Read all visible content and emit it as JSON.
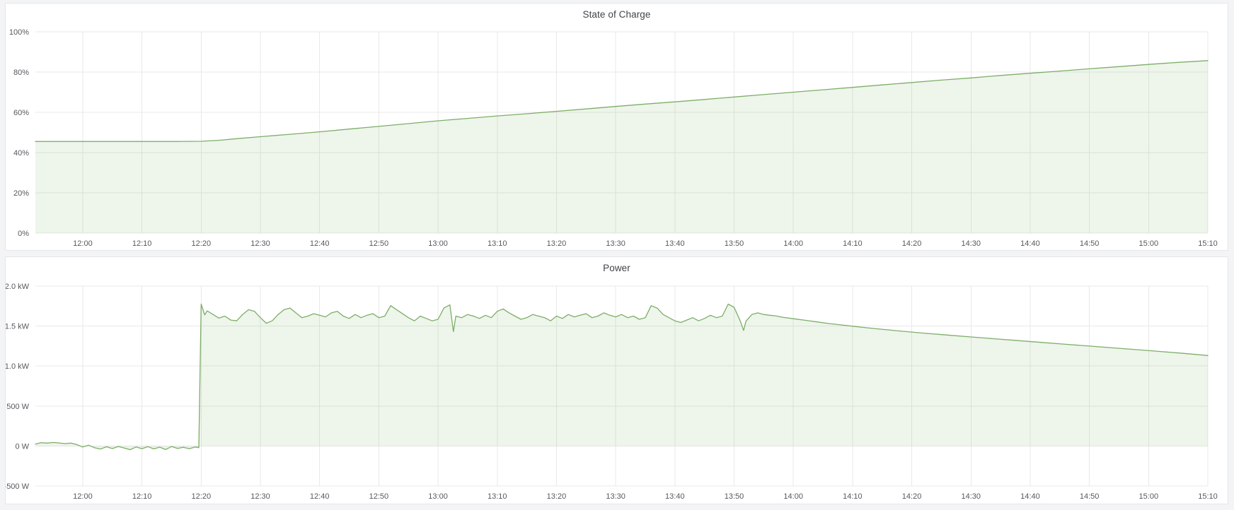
{
  "page": {
    "background_color": "#f3f4f5",
    "panel_background": "#ffffff",
    "panel_border_color": "#e3e6ea",
    "accent_green": "#7dae68",
    "gridline_color": "#e9e9e9"
  },
  "chart_data": [
    {
      "type": "area",
      "title": "State of Charge",
      "xlabel": "",
      "ylabel": "",
      "unit": "%",
      "grid": true,
      "legend": "none",
      "line_color": "#7dae68",
      "fill_opacity": 0.13,
      "fill_baseline": 0,
      "ylim": [
        0,
        100
      ],
      "xlim": [
        0,
        198
      ],
      "x_window": {
        "start": "11:52",
        "end": "15:10"
      },
      "y_ticks": [
        {
          "v": 0,
          "label": "0%"
        },
        {
          "v": 20,
          "label": "20%"
        },
        {
          "v": 40,
          "label": "40%"
        },
        {
          "v": 60,
          "label": "60%"
        },
        {
          "v": 80,
          "label": "80%"
        },
        {
          "v": 100,
          "label": "100%"
        }
      ],
      "x_ticks": [
        {
          "t": 8,
          "label": "12:00"
        },
        {
          "t": 18,
          "label": "12:10"
        },
        {
          "t": 28,
          "label": "12:20"
        },
        {
          "t": 38,
          "label": "12:30"
        },
        {
          "t": 48,
          "label": "12:40"
        },
        {
          "t": 58,
          "label": "12:50"
        },
        {
          "t": 68,
          "label": "13:00"
        },
        {
          "t": 78,
          "label": "13:10"
        },
        {
          "t": 88,
          "label": "13:20"
        },
        {
          "t": 98,
          "label": "13:30"
        },
        {
          "t": 108,
          "label": "13:40"
        },
        {
          "t": 118,
          "label": "13:50"
        },
        {
          "t": 128,
          "label": "14:00"
        },
        {
          "t": 138,
          "label": "14:10"
        },
        {
          "t": 148,
          "label": "14:20"
        },
        {
          "t": 158,
          "label": "14:30"
        },
        {
          "t": 168,
          "label": "14:40"
        },
        {
          "t": 178,
          "label": "14:50"
        },
        {
          "t": 188,
          "label": "15:00"
        },
        {
          "t": 198,
          "label": "15:10"
        }
      ],
      "series": [
        {
          "name": "State of Charge",
          "points": [
            [
              0,
              45.5
            ],
            [
              6,
              45.5
            ],
            [
              12,
              45.5
            ],
            [
              18,
              45.5
            ],
            [
              24,
              45.5
            ],
            [
              28,
              45.6
            ],
            [
              31,
              46.1
            ],
            [
              34,
              46.9
            ],
            [
              38,
              47.9
            ],
            [
              43,
              49.1
            ],
            [
              48,
              50.3
            ],
            [
              53,
              51.7
            ],
            [
              58,
              53.0
            ],
            [
              63,
              54.4
            ],
            [
              68,
              55.8
            ],
            [
              73,
              57.0
            ],
            [
              78,
              58.2
            ],
            [
              83,
              59.3
            ],
            [
              88,
              60.5
            ],
            [
              93,
              61.7
            ],
            [
              98,
              62.9
            ],
            [
              103,
              64.1
            ],
            [
              108,
              65.2
            ],
            [
              113,
              66.4
            ],
            [
              118,
              67.6
            ],
            [
              123,
              68.8
            ],
            [
              128,
              70.0
            ],
            [
              133,
              71.2
            ],
            [
              138,
              72.4
            ],
            [
              143,
              73.6
            ],
            [
              148,
              74.8
            ],
            [
              153,
              76.0
            ],
            [
              158,
              77.1
            ],
            [
              163,
              78.3
            ],
            [
              168,
              79.4
            ],
            [
              173,
              80.5
            ],
            [
              178,
              81.6
            ],
            [
              183,
              82.7
            ],
            [
              188,
              83.8
            ],
            [
              193,
              84.8
            ],
            [
              198,
              85.7
            ]
          ]
        }
      ]
    },
    {
      "type": "area",
      "title": "Power",
      "xlabel": "",
      "ylabel": "",
      "unit": "W",
      "grid": true,
      "legend": "none",
      "line_color": "#7dae68",
      "fill_opacity": 0.13,
      "fill_baseline": 0,
      "ylim": [
        -500,
        2000
      ],
      "xlim": [
        0,
        198
      ],
      "x_window": {
        "start": "11:52",
        "end": "15:10"
      },
      "y_ticks": [
        {
          "v": -500,
          "label": "-500 W"
        },
        {
          "v": 0,
          "label": "0 W"
        },
        {
          "v": 500,
          "label": "500 W"
        },
        {
          "v": 1000,
          "label": "1.0 kW"
        },
        {
          "v": 1500,
          "label": "1.5 kW"
        },
        {
          "v": 2000,
          "label": "2.0 kW"
        }
      ],
      "x_ticks": [
        {
          "t": 8,
          "label": "12:00"
        },
        {
          "t": 18,
          "label": "12:10"
        },
        {
          "t": 28,
          "label": "12:20"
        },
        {
          "t": 38,
          "label": "12:30"
        },
        {
          "t": 48,
          "label": "12:40"
        },
        {
          "t": 58,
          "label": "12:50"
        },
        {
          "t": 68,
          "label": "13:00"
        },
        {
          "t": 78,
          "label": "13:10"
        },
        {
          "t": 88,
          "label": "13:20"
        },
        {
          "t": 98,
          "label": "13:30"
        },
        {
          "t": 108,
          "label": "13:40"
        },
        {
          "t": 118,
          "label": "13:50"
        },
        {
          "t": 128,
          "label": "14:00"
        },
        {
          "t": 138,
          "label": "14:10"
        },
        {
          "t": 148,
          "label": "14:20"
        },
        {
          "t": 158,
          "label": "14:30"
        },
        {
          "t": 168,
          "label": "14:40"
        },
        {
          "t": 178,
          "label": "14:50"
        },
        {
          "t": 188,
          "label": "15:00"
        },
        {
          "t": 198,
          "label": "15:10"
        }
      ],
      "series": [
        {
          "name": "Power",
          "points": [
            [
              0,
              25
            ],
            [
              1,
              42
            ],
            [
              2,
              36
            ],
            [
              3,
              44
            ],
            [
              4,
              38
            ],
            [
              5,
              30
            ],
            [
              6,
              36
            ],
            [
              7,
              18
            ],
            [
              8,
              -12
            ],
            [
              9,
              10
            ],
            [
              10,
              -22
            ],
            [
              11,
              -38
            ],
            [
              12,
              -10
            ],
            [
              13,
              -32
            ],
            [
              14,
              -6
            ],
            [
              15,
              -26
            ],
            [
              16,
              -46
            ],
            [
              17,
              -12
            ],
            [
              18,
              -34
            ],
            [
              19,
              -8
            ],
            [
              20,
              -36
            ],
            [
              21,
              -14
            ],
            [
              22,
              -44
            ],
            [
              23,
              -6
            ],
            [
              24,
              -30
            ],
            [
              25,
              -16
            ],
            [
              26,
              -34
            ],
            [
              27,
              -12
            ],
            [
              27.6,
              -20
            ],
            [
              28,
              1775
            ],
            [
              28.6,
              1640
            ],
            [
              29,
              1690
            ],
            [
              30,
              1645
            ],
            [
              31,
              1600
            ],
            [
              32,
              1625
            ],
            [
              33,
              1575
            ],
            [
              34,
              1565
            ],
            [
              35,
              1645
            ],
            [
              36,
              1705
            ],
            [
              37,
              1685
            ],
            [
              38,
              1605
            ],
            [
              39,
              1535
            ],
            [
              40,
              1565
            ],
            [
              41,
              1645
            ],
            [
              42,
              1705
            ],
            [
              43,
              1725
            ],
            [
              44,
              1665
            ],
            [
              45,
              1605
            ],
            [
              46,
              1625
            ],
            [
              47,
              1655
            ],
            [
              48,
              1635
            ],
            [
              49,
              1615
            ],
            [
              50,
              1665
            ],
            [
              51,
              1685
            ],
            [
              52,
              1625
            ],
            [
              53,
              1595
            ],
            [
              54,
              1645
            ],
            [
              55,
              1605
            ],
            [
              56,
              1635
            ],
            [
              57,
              1655
            ],
            [
              58,
              1605
            ],
            [
              59,
              1625
            ],
            [
              60,
              1755
            ],
            [
              61,
              1705
            ],
            [
              62,
              1655
            ],
            [
              63,
              1605
            ],
            [
              64,
              1565
            ],
            [
              65,
              1625
            ],
            [
              66,
              1595
            ],
            [
              67,
              1565
            ],
            [
              68,
              1585
            ],
            [
              69,
              1725
            ],
            [
              70,
              1765
            ],
            [
              70.6,
              1430
            ],
            [
              71,
              1625
            ],
            [
              72,
              1605
            ],
            [
              73,
              1645
            ],
            [
              74,
              1625
            ],
            [
              75,
              1595
            ],
            [
              76,
              1635
            ],
            [
              77,
              1605
            ],
            [
              78,
              1685
            ],
            [
              79,
              1715
            ],
            [
              80,
              1665
            ],
            [
              81,
              1625
            ],
            [
              82,
              1585
            ],
            [
              83,
              1605
            ],
            [
              84,
              1645
            ],
            [
              85,
              1625
            ],
            [
              86,
              1605
            ],
            [
              87,
              1565
            ],
            [
              88,
              1625
            ],
            [
              89,
              1595
            ],
            [
              90,
              1645
            ],
            [
              91,
              1615
            ],
            [
              92,
              1635
            ],
            [
              93,
              1655
            ],
            [
              94,
              1605
            ],
            [
              95,
              1625
            ],
            [
              96,
              1665
            ],
            [
              97,
              1635
            ],
            [
              98,
              1615
            ],
            [
              99,
              1645
            ],
            [
              100,
              1605
            ],
            [
              101,
              1625
            ],
            [
              102,
              1585
            ],
            [
              103,
              1605
            ],
            [
              104,
              1755
            ],
            [
              105,
              1725
            ],
            [
              106,
              1645
            ],
            [
              107,
              1605
            ],
            [
              108,
              1565
            ],
            [
              109,
              1545
            ],
            [
              110,
              1575
            ],
            [
              111,
              1605
            ],
            [
              112,
              1565
            ],
            [
              113,
              1595
            ],
            [
              114,
              1635
            ],
            [
              115,
              1605
            ],
            [
              116,
              1625
            ],
            [
              117,
              1775
            ],
            [
              118,
              1735
            ],
            [
              119,
              1570
            ],
            [
              119.6,
              1445
            ],
            [
              120,
              1560
            ],
            [
              121,
              1645
            ],
            [
              122,
              1665
            ],
            [
              123,
              1645
            ],
            [
              124,
              1635
            ],
            [
              125,
              1628
            ],
            [
              126,
              1612
            ],
            [
              128,
              1592
            ],
            [
              130,
              1572
            ],
            [
              132,
              1552
            ],
            [
              134,
              1532
            ],
            [
              136,
              1515
            ],
            [
              138,
              1498
            ],
            [
              140,
              1482
            ],
            [
              142,
              1466
            ],
            [
              144,
              1452
            ],
            [
              146,
              1438
            ],
            [
              150,
              1412
            ],
            [
              154,
              1388
            ],
            [
              158,
              1364
            ],
            [
              162,
              1341
            ],
            [
              166,
              1318
            ],
            [
              170,
              1295
            ],
            [
              174,
              1272
            ],
            [
              178,
              1250
            ],
            [
              182,
              1227
            ],
            [
              186,
              1205
            ],
            [
              190,
              1182
            ],
            [
              194,
              1158
            ],
            [
              198,
              1132
            ]
          ]
        }
      ]
    }
  ]
}
